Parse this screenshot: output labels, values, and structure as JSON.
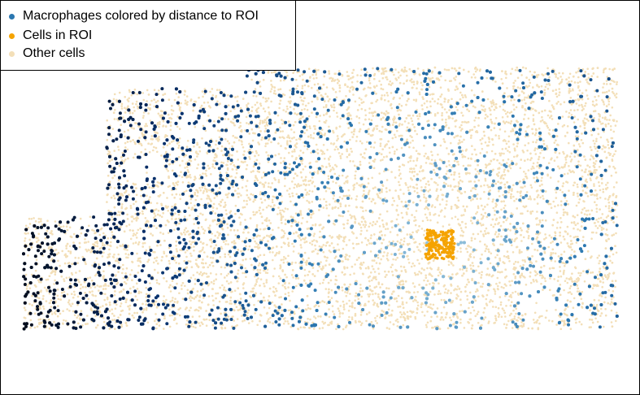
{
  "chart_data": {
    "type": "scatter",
    "title": "",
    "xlabel": "",
    "ylabel": "",
    "grid": false,
    "legend_position": "top-left",
    "colors": {
      "macrophage_near": "#9ecae1",
      "macrophage_mid": "#2b77b0",
      "macrophage_far": "#08306b",
      "macrophage_farthest": "#020812",
      "roi": "#f5a300",
      "other": "#f3dfb8"
    },
    "legend": [
      {
        "label": "Macrophages colored by distance to ROI",
        "color": "#2b77b0"
      },
      {
        "label": "Cells in ROI",
        "color": "#f5a300"
      },
      {
        "label": "Other cells",
        "color": "#f3dfb8"
      }
    ],
    "series": [
      {
        "name": "Macrophages colored by distance to ROI",
        "color_scale": "distance to ROI: near (light blue) to far (near black)"
      },
      {
        "name": "Cells in ROI",
        "center": [
          540,
          300
        ],
        "extent": [
          18,
          18
        ],
        "approx_count": 180
      },
      {
        "name": "Other cells",
        "approx_count": 9000
      }
    ]
  }
}
